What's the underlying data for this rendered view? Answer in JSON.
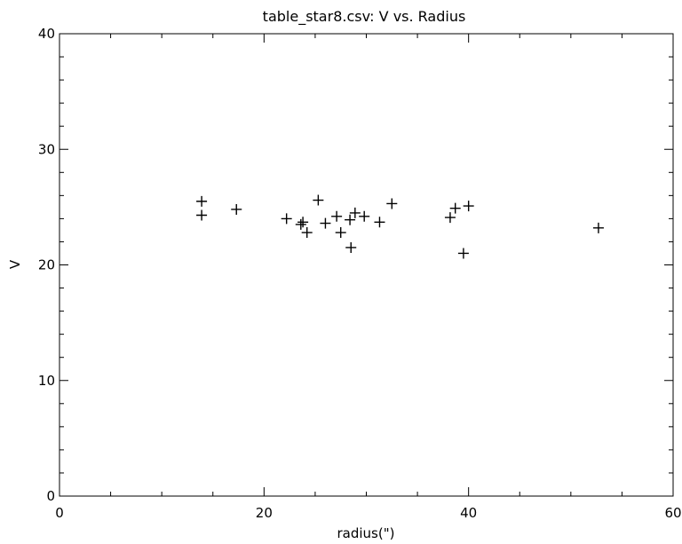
{
  "chart_data": {
    "type": "scatter",
    "title": "table_star8.csv:  V vs. Radius",
    "xlabel": "radius(\")",
    "ylabel": "V",
    "xlim": [
      0,
      60
    ],
    "ylim": [
      0,
      40
    ],
    "x_ticks": [
      "0",
      "20",
      "40",
      "60"
    ],
    "y_ticks": [
      "0",
      "10",
      "20",
      "30",
      "40"
    ],
    "grid": false,
    "marker": "plus",
    "points": [
      {
        "x": 13.9,
        "y": 25.5
      },
      {
        "x": 13.9,
        "y": 24.3
      },
      {
        "x": 17.3,
        "y": 24.8
      },
      {
        "x": 22.2,
        "y": 24.0
      },
      {
        "x": 23.6,
        "y": 23.5
      },
      {
        "x": 23.8,
        "y": 23.7
      },
      {
        "x": 24.2,
        "y": 22.8
      },
      {
        "x": 25.3,
        "y": 25.6
      },
      {
        "x": 26.0,
        "y": 23.6
      },
      {
        "x": 27.1,
        "y": 24.2
      },
      {
        "x": 27.5,
        "y": 22.8
      },
      {
        "x": 28.4,
        "y": 23.9
      },
      {
        "x": 28.5,
        "y": 21.5
      },
      {
        "x": 28.9,
        "y": 24.5
      },
      {
        "x": 29.8,
        "y": 24.2
      },
      {
        "x": 31.3,
        "y": 23.7
      },
      {
        "x": 32.5,
        "y": 25.3
      },
      {
        "x": 38.2,
        "y": 24.1
      },
      {
        "x": 38.7,
        "y": 24.9
      },
      {
        "x": 39.5,
        "y": 21.0
      },
      {
        "x": 40.0,
        "y": 25.1
      },
      {
        "x": 52.7,
        "y": 23.2
      }
    ]
  }
}
